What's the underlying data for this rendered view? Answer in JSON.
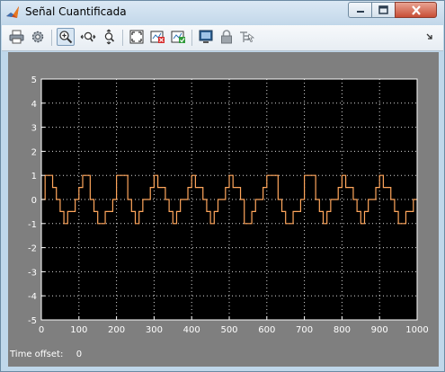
{
  "window": {
    "title": "Señal Cuantificada",
    "controls": [
      "minimize",
      "maximize",
      "close"
    ]
  },
  "toolbar": {
    "items": [
      {
        "icon": "printer-icon",
        "tooltip": "Print"
      },
      {
        "icon": "gear-icon",
        "tooltip": "Parameters"
      },
      {
        "icon": "zoom-in-icon",
        "tooltip": "Zoom",
        "active": true
      },
      {
        "icon": "zoom-x-icon",
        "tooltip": "Zoom X-axis"
      },
      {
        "icon": "zoom-y-icon",
        "tooltip": "Zoom Y-axis"
      },
      {
        "icon": "autoscale-icon",
        "tooltip": "Autoscale"
      },
      {
        "icon": "save-axes-icon",
        "tooltip": "Save axes settings"
      },
      {
        "icon": "restore-axes-icon",
        "tooltip": "Restore saved axes"
      },
      {
        "icon": "floating-scope-icon",
        "tooltip": "Floating scope"
      },
      {
        "icon": "lock-icon",
        "tooltip": "Lock axes selection"
      },
      {
        "icon": "signal-selection-icon",
        "tooltip": "Signal selection"
      }
    ],
    "overflow_icon": "chevron-right-icon"
  },
  "footer": {
    "time_offset_label": "Time offset:",
    "time_offset_value": "0"
  },
  "colors": {
    "plot_background": "#000000",
    "figure_background": "#7f7f7f",
    "signal": "#ffa65c",
    "grid": "#ffffff"
  },
  "chart_data": {
    "type": "line",
    "title": "",
    "xlabel": "",
    "ylabel": "",
    "xlim": [
      0,
      1000
    ],
    "ylim": [
      -5,
      5
    ],
    "xticks": [
      0,
      100,
      200,
      300,
      400,
      500,
      600,
      700,
      800,
      900,
      1000
    ],
    "yticks": [
      5,
      4,
      3,
      2,
      1,
      0,
      -1,
      -2,
      -3,
      -4,
      -5
    ],
    "grid": true,
    "series": [
      {
        "style": "stairs",
        "x": [
          0,
          10,
          30,
          40,
          50,
          60,
          70,
          90,
          100,
          110,
          130,
          140,
          150,
          160,
          170,
          190,
          200,
          210,
          230,
          240,
          250,
          260,
          270,
          290,
          300,
          310,
          330,
          340,
          350,
          360,
          370,
          390,
          400,
          410,
          430,
          440,
          450,
          460,
          470,
          490,
          500,
          510,
          530,
          540,
          550,
          560,
          570,
          590,
          600,
          610,
          630,
          640,
          650,
          660,
          670,
          690,
          700,
          710,
          730,
          740,
          750,
          760,
          770,
          790,
          800,
          810,
          830,
          840,
          850,
          860,
          870,
          890,
          900,
          910,
          930,
          940,
          950,
          960,
          970,
          990,
          1000
        ],
        "y": [
          0,
          1,
          0.5,
          0,
          -0.5,
          -1,
          -0.5,
          0,
          0.5,
          1,
          0,
          -0.5,
          -1,
          -1,
          -0.5,
          0,
          1,
          1,
          0,
          -0.5,
          -1,
          -0.5,
          0,
          0.5,
          1,
          0.5,
          0,
          -0.5,
          -1,
          -0.5,
          0,
          0.5,
          1,
          0.5,
          0,
          -0.5,
          -1,
          -0.5,
          0,
          0.5,
          1,
          0.5,
          0,
          -1,
          -1,
          -0.5,
          0,
          0.5,
          1,
          1,
          0,
          -0.5,
          -1,
          -1,
          -0.5,
          0,
          1,
          1,
          0,
          -0.5,
          -1,
          -0.5,
          0,
          0.5,
          1,
          0.5,
          0,
          -0.5,
          -1,
          -0.5,
          0,
          0.5,
          1,
          0.5,
          0,
          -0.5,
          -1,
          -1,
          -0.5,
          0,
          0
        ]
      }
    ]
  }
}
